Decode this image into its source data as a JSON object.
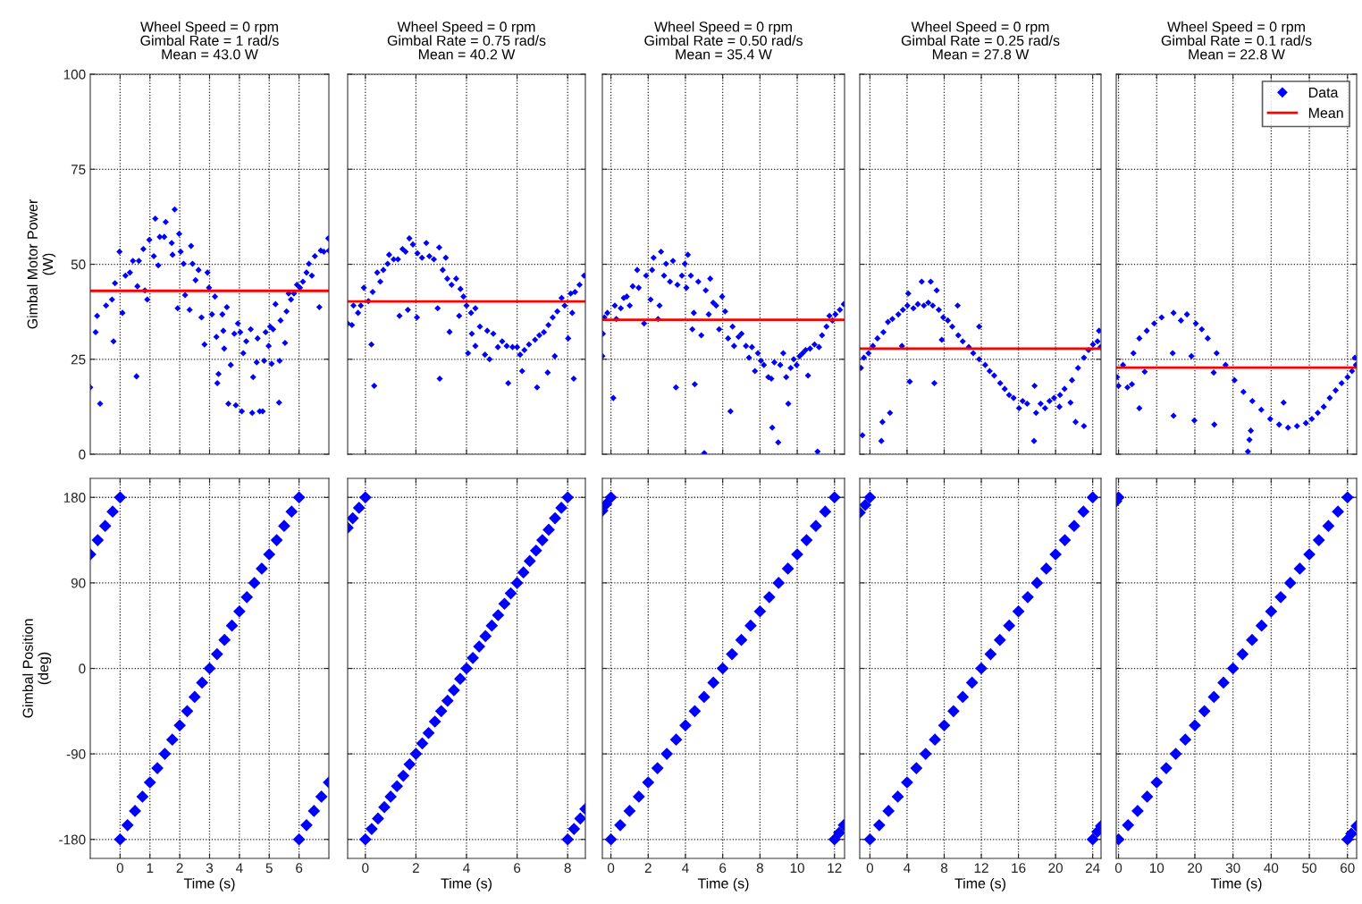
{
  "chart_data": [
    {
      "type": "scatter",
      "title": "Wheel Speed = 0 rpm\nGimbal Rate = 1 rad/s\nMean = 43.0 W",
      "ylabel": "Gimbal Motor Power\n(W)",
      "xlim": [
        -1,
        7
      ],
      "xticks": [
        0,
        1,
        2,
        3,
        4,
        5,
        6
      ],
      "ylim": [
        0,
        100
      ],
      "yticks": [
        0,
        25,
        50,
        75,
        100
      ],
      "grid": true,
      "tick_labels": "y",
      "series": [
        {
          "marker": "diamond",
          "color": "#0000ff",
          "x": [
            -1.0,
            -0.82,
            -0.77,
            -0.67,
            -0.47,
            -0.27,
            -0.22,
            -0.17,
            -0.02,
            0.08,
            0.18,
            0.33,
            0.43,
            0.55,
            0.58,
            0.63,
            0.78,
            0.83,
            0.91,
            0.98,
            1.13,
            1.18,
            1.28,
            1.33,
            1.48,
            1.53,
            1.73,
            1.76,
            1.83,
            1.93,
            1.98,
            2.03,
            2.13,
            2.18,
            2.33,
            2.38,
            2.43,
            2.53,
            2.63,
            2.73,
            2.83,
            2.93,
            2.98,
            3.08,
            3.18,
            3.23,
            3.26,
            3.3,
            3.43,
            3.46,
            3.49,
            3.58,
            3.63,
            3.71,
            3.83,
            3.88,
            3.95,
            4.03,
            4.08,
            4.13,
            4.23,
            4.38,
            4.43,
            4.46,
            4.58,
            4.61,
            4.68,
            4.78,
            4.83,
            4.88,
            4.98,
            5.03,
            5.08,
            5.13,
            5.21,
            5.33,
            5.35,
            5.38,
            5.53,
            5.58,
            5.65,
            5.73,
            5.83,
            5.93,
            6.03,
            6.13,
            6.25,
            6.33,
            6.43,
            6.53,
            6.68,
            6.73,
            6.83,
            6.98,
            7.0
          ],
          "values": [
            17.6,
            32.1,
            36.4,
            13.3,
            39.1,
            40.7,
            29.7,
            45.0,
            53.3,
            37.2,
            47.0,
            47.8,
            50.9,
            20.5,
            44.2,
            50.9,
            54.0,
            43.1,
            40.7,
            56.4,
            52.1,
            62.0,
            49.7,
            57.2,
            57.2,
            61.1,
            55.6,
            52.5,
            64.4,
            38.4,
            58.0,
            53.3,
            50.1,
            41.9,
            38.0,
            54.8,
            50.1,
            45.8,
            48.5,
            36.0,
            28.9,
            47.8,
            43.8,
            36.8,
            41.5,
            30.9,
            18.7,
            21.1,
            36.8,
            32.5,
            27.8,
            38.7,
            13.3,
            23.5,
            31.7,
            12.9,
            34.4,
            32.1,
            11.3,
            26.6,
            29.7,
            32.9,
            10.9,
            20.3,
            24.2,
            30.5,
            11.3,
            11.3,
            24.6,
            32.1,
            28.5,
            33.6,
            23.8,
            32.9,
            39.5,
            13.6,
            24.6,
            35.2,
            29.3,
            37.6,
            42.3,
            40.7,
            42.3,
            44.6,
            43.8,
            45.4,
            47.8,
            50.1,
            47.0,
            52.1,
            38.7,
            53.6,
            53.3,
            56.8,
            53.6
          ]
        },
        {
          "type": "line",
          "color": "#ff0000",
          "x": [
            -1,
            7
          ],
          "values": [
            43.0,
            43.0
          ]
        }
      ]
    },
    {
      "type": "scatter",
      "title": "Wheel Speed = 0 rpm\nGimbal Rate = 0.75 rad/s\nMean = 40.2 W",
      "xlim": [
        -0.7,
        8.7
      ],
      "xticks": [
        0,
        2,
        4,
        6,
        8
      ],
      "ylim": [
        0,
        100
      ],
      "yticks": [
        0,
        25,
        50,
        75,
        100
      ],
      "grid": true,
      "tick_labels": false,
      "series": [
        {
          "marker": "diamond",
          "color": "#0000ff",
          "x": [
            -0.7,
            -0.53,
            -0.47,
            -0.29,
            -0.18,
            -0.06,
            0.12,
            0.24,
            0.29,
            0.35,
            0.47,
            0.59,
            0.71,
            0.88,
            0.94,
            1.12,
            1.29,
            1.35,
            1.47,
            1.59,
            1.68,
            1.74,
            1.88,
            2.04,
            2.06,
            2.24,
            2.41,
            2.53,
            2.71,
            2.86,
            2.92,
            2.94,
            3.06,
            3.18,
            3.24,
            3.33,
            3.41,
            3.59,
            3.71,
            3.76,
            3.88,
            4.0,
            4.06,
            4.18,
            4.21,
            4.35,
            4.35,
            4.53,
            4.73,
            4.82,
            4.91,
            5.06,
            5.24,
            5.41,
            5.59,
            5.65,
            5.82,
            6.0,
            6.12,
            6.2,
            6.29,
            6.47,
            6.71,
            6.79,
            6.88,
            7.06,
            7.21,
            7.24,
            7.41,
            7.49,
            7.59,
            7.76,
            7.88,
            8.02,
            8.12,
            8.18,
            8.24,
            8.29,
            8.47,
            8.65
          ],
          "values": [
            34.4,
            34.0,
            39.1,
            37.2,
            39.1,
            43.8,
            40.3,
            28.9,
            42.7,
            18.0,
            47.8,
            45.4,
            48.5,
            50.1,
            52.5,
            51.3,
            51.3,
            36.4,
            54.0,
            53.3,
            38.0,
            56.8,
            55.2,
            36.0,
            52.9,
            51.7,
            55.6,
            52.1,
            51.3,
            38.4,
            54.4,
            19.9,
            48.5,
            51.7,
            46.2,
            32.2,
            44.6,
            46.2,
            36.4,
            43.5,
            41.5,
            39.1,
            26.6,
            37.2,
            31.7,
            38.4,
            28.5,
            33.6,
            26.2,
            32.5,
            25.0,
            31.7,
            28.2,
            29.7,
            28.5,
            18.7,
            28.2,
            28.2,
            26.2,
            21.9,
            27.4,
            28.9,
            30.1,
            17.6,
            31.3,
            32.1,
            21.5,
            34.0,
            36.0,
            25.8,
            37.6,
            41.1,
            39.1,
            30.5,
            42.3,
            37.2,
            19.9,
            42.7,
            44.6,
            47.0
          ]
        },
        {
          "type": "line",
          "color": "#ff0000",
          "x": [
            -0.7,
            8.7
          ],
          "values": [
            40.2,
            40.2
          ]
        }
      ]
    },
    {
      "type": "scatter",
      "title": "Wheel Speed = 0 rpm\nGimbal Rate = 0.50 rad/s\nMean = 35.4 W",
      "xlim": [
        -0.46,
        12.54
      ],
      "xticks": [
        0,
        2,
        4,
        6,
        8,
        10,
        12
      ],
      "ylim": [
        0,
        100
      ],
      "yticks": [
        0,
        25,
        50,
        75,
        100
      ],
      "grid": true,
      "tick_labels": false,
      "series": [
        {
          "marker": "diamond",
          "color": "#0000ff",
          "x": [
            -0.46,
            -0.43,
            -0.35,
            -0.19,
            0.13,
            0.21,
            0.29,
            0.53,
            0.69,
            0.85,
            1.01,
            1.17,
            1.41,
            1.49,
            1.78,
            1.89,
            2.13,
            2.21,
            2.29,
            2.53,
            2.61,
            2.69,
            2.85,
            2.96,
            3.17,
            3.33,
            3.49,
            3.57,
            3.81,
            3.97,
            4.05,
            4.13,
            4.29,
            4.37,
            4.45,
            4.5,
            4.69,
            4.85,
            5.01,
            5.09,
            5.25,
            5.33,
            5.49,
            5.65,
            5.81,
            5.97,
            6.13,
            6.29,
            6.42,
            6.53,
            6.61,
            6.85,
            7.01,
            7.25,
            7.41,
            7.57,
            7.73,
            7.89,
            8.05,
            8.21,
            8.45,
            8.61,
            8.66,
            8.77,
            8.98,
            9.09,
            9.25,
            9.41,
            9.52,
            9.65,
            9.81,
            9.97,
            10.13,
            10.29,
            10.45,
            10.58,
            10.69,
            10.93,
            11.09,
            11.17,
            11.33,
            11.57,
            11.73,
            11.89,
            12.05,
            12.29,
            12.5
          ],
          "values": [
            25.8,
            31.7,
            36.0,
            37.2,
            14.8,
            39.1,
            35.6,
            38.4,
            41.1,
            41.5,
            39.1,
            44.2,
            48.5,
            43.8,
            34.4,
            47.0,
            40.7,
            48.5,
            51.7,
            35.6,
            39.1,
            53.3,
            47.0,
            50.1,
            45.4,
            50.9,
            17.6,
            44.6,
            47.0,
            50.1,
            43.8,
            52.5,
            47.0,
            32.9,
            37.2,
            18.4,
            45.4,
            31.3,
            0.3,
            43.1,
            36.8,
            46.2,
            39.9,
            39.1,
            32.9,
            41.5,
            37.6,
            30.5,
            11.3,
            33.6,
            28.5,
            30.9,
            31.7,
            28.5,
            25.4,
            28.2,
            21.9,
            26.6,
            24.6,
            23.5,
            20.3,
            19.9,
            7.0,
            24.2,
            3.1,
            23.5,
            26.6,
            20.3,
            13.3,
            22.7,
            25.0,
            23.5,
            25.8,
            26.6,
            27.4,
            20.7,
            27.8,
            28.9,
            0.7,
            28.2,
            31.3,
            33.6,
            36.4,
            35.2,
            36.8,
            38.0,
            39.5
          ]
        },
        {
          "type": "line",
          "color": "#ff0000",
          "x": [
            -0.46,
            12.54
          ],
          "values": [
            35.4,
            35.4
          ]
        }
      ]
    },
    {
      "type": "scatter",
      "title": "Wheel Speed = 0 rpm\nGimbal Rate = 0.25 rad/s\nMean = 27.8 W",
      "xlim": [
        -1.1,
        24.9
      ],
      "xticks": [
        0,
        4,
        8,
        12,
        16,
        20,
        24
      ],
      "ylim": [
        0,
        100
      ],
      "yticks": [
        0,
        25,
        50,
        75,
        100
      ],
      "grid": true,
      "tick_labels": false,
      "series": [
        {
          "marker": "diamond",
          "color": "#0000ff",
          "x": [
            -0.97,
            -0.81,
            -0.65,
            -0.16,
            0.32,
            0.81,
            1.23,
            1.35,
            1.45,
            1.94,
            2.16,
            2.42,
            3.06,
            3.45,
            3.55,
            4.03,
            4.13,
            4.29,
            4.68,
            5.16,
            5.58,
            5.81,
            6.29,
            6.55,
            6.77,
            6.94,
            7.19,
            7.42,
            7.74,
            7.9,
            8.39,
            8.87,
            9.45,
            9.52,
            10.0,
            10.65,
            11.13,
            11.77,
            11.77,
            12.42,
            12.9,
            13.39,
            14.03,
            14.52,
            15.0,
            15.48,
            16.06,
            16.45,
            16.94,
            17.68,
            17.74,
            17.9,
            18.39,
            18.87,
            19.35,
            19.84,
            20.42,
            20.48,
            20.97,
            21.61,
            21.77,
            22.16,
            22.42,
            23.06,
            23.06,
            23.55,
            24.03,
            24.52,
            24.68,
            24.84
          ],
          "values": [
            22.7,
            5.0,
            25.4,
            26.6,
            28.5,
            30.5,
            3.5,
            8.5,
            32.1,
            34.8,
            10.9,
            35.6,
            36.8,
            28.5,
            38.0,
            39.1,
            42.3,
            19.1,
            38.4,
            39.5,
            45.4,
            39.1,
            39.9,
            45.4,
            39.1,
            18.7,
            43.1,
            38.0,
            30.1,
            36.0,
            35.2,
            33.6,
            39.1,
            31.3,
            29.7,
            28.2,
            26.6,
            33.6,
            25.0,
            23.5,
            21.9,
            20.7,
            18.7,
            17.2,
            15.6,
            14.8,
            12.1,
            14.0,
            13.3,
            3.5,
            18.0,
            10.9,
            13.3,
            12.1,
            14.0,
            14.8,
            12.5,
            15.6,
            17.2,
            13.6,
            19.5,
            8.5,
            22.7,
            7.4,
            25.4,
            27.4,
            28.9,
            29.7,
            32.5,
            28.2
          ]
        },
        {
          "type": "line",
          "color": "#ff0000",
          "x": [
            -1.1,
            24.9
          ],
          "values": [
            27.8,
            27.8
          ]
        }
      ]
    },
    {
      "type": "scatter",
      "title": "Wheel Speed = 0 rpm\nGimbal Rate = 0.1 rad/s\nMean = 22.8 W",
      "xlim": [
        -0.6,
        62.4
      ],
      "xticks": [
        0,
        10,
        20,
        30,
        40,
        50,
        60
      ],
      "ylim": [
        0,
        100
      ],
      "yticks": [
        0,
        25,
        50,
        75,
        100
      ],
      "grid": true,
      "tick_labels": false,
      "legend": "top right",
      "series": [
        {
          "name": "Data",
          "marker": "diamond",
          "color": "#0000ff",
          "x": [
            -0.39,
            0,
            1.17,
            2.34,
            3.51,
            3.9,
            5.46,
            5.46,
            6.86,
            7.4,
            9.35,
            11.3,
            14.19,
            14.42,
            14.42,
            16.37,
            17.93,
            19.1,
            19.88,
            20.26,
            21.82,
            23.38,
            24.94,
            25.1,
            25.72,
            28.06,
            30.4,
            32.74,
            33.91,
            34.3,
            34.68,
            35.07,
            37.41,
            39.75,
            42.09,
            43.26,
            44.43,
            46.77,
            49.1,
            50.66,
            52.22,
            53.78,
            55.34,
            56.9,
            58.46,
            60.02,
            61.18,
            61.96,
            62.2
          ],
          "values": [
            20.3,
            18.0,
            23.5,
            17.6,
            18.4,
            26.6,
            12.1,
            30.5,
            21.7,
            32.5,
            34.4,
            36.0,
            26.6,
            10.1,
            37.2,
            35.2,
            36.8,
            25.8,
            8.9,
            34.4,
            32.9,
            30.5,
            21.5,
            7.8,
            26.6,
            23.5,
            19.5,
            16.4,
            0.7,
            3.8,
            6.2,
            14.0,
            11.7,
            9.3,
            7.8,
            13.6,
            7.0,
            7.4,
            8.2,
            9.3,
            10.9,
            12.5,
            14.8,
            16.8,
            18.7,
            20.3,
            21.9,
            25.4,
            23.5
          ]
        },
        {
          "name": "Mean",
          "type": "line",
          "color": "#ff0000",
          "x": [
            -0.6,
            62.4
          ],
          "values": [
            22.8,
            22.8
          ]
        }
      ]
    },
    {
      "type": "scatter",
      "xlabel": "Time (s)",
      "ylabel": "Gimbal Position\n(deg)",
      "xlim": [
        -1,
        7
      ],
      "xticks": [
        0,
        1,
        2,
        3,
        4,
        5,
        6
      ],
      "ylim": [
        -200,
        200
      ],
      "yticks": [
        -180,
        -90,
        0,
        90,
        180
      ],
      "grid": true,
      "series": [
        {
          "marker": "diamond",
          "color": "#0000ff",
          "x": [
            -1,
            -0.75,
            -0.5,
            -0.25,
            0,
            0,
            0.25,
            0.5,
            0.75,
            1,
            1.25,
            1.5,
            1.75,
            2,
            2.25,
            2.5,
            2.75,
            3,
            3.25,
            3.5,
            3.75,
            4,
            4.25,
            4.5,
            4.75,
            5,
            5.25,
            5.5,
            5.75,
            6,
            6,
            6.25,
            6.5,
            6.75,
            7
          ],
          "values": [
            120,
            135,
            150,
            165,
            180,
            -180,
            -165,
            -150,
            -135,
            -120,
            -105,
            -90,
            -75,
            -60,
            -45,
            -30,
            -15,
            0,
            15,
            30,
            45,
            60,
            75,
            90,
            105,
            120,
            135,
            150,
            165,
            180,
            -180,
            -165,
            -150,
            -135,
            -120
          ]
        }
      ]
    },
    {
      "type": "scatter",
      "xlabel": "Time (s)",
      "xlim": [
        -0.7,
        8.7
      ],
      "xticks": [
        0,
        2,
        4,
        6,
        8
      ],
      "ylim": [
        -200,
        200
      ],
      "yticks": [
        -180,
        -90,
        0,
        90,
        180
      ],
      "grid": true,
      "tick_labels": "x",
      "series": [
        {
          "marker": "diamond",
          "color": "#0000ff",
          "x": [
            -0.7,
            -0.5,
            -0.25,
            0,
            0,
            0.25,
            0.5,
            0.75,
            1,
            1.25,
            1.5,
            1.75,
            2,
            2.25,
            2.5,
            2.75,
            3,
            3.25,
            3.5,
            3.75,
            4,
            4.25,
            4.5,
            4.75,
            5,
            5.25,
            5.5,
            5.75,
            6,
            6.25,
            6.5,
            6.75,
            7,
            7.25,
            7.5,
            7.75,
            8,
            8,
            8.25,
            8.5,
            8.7
          ],
          "values": [
            148,
            158,
            169,
            180,
            -180,
            -169,
            -158,
            -146,
            -135,
            -124,
            -113,
            -101,
            -90,
            -79,
            -68,
            -56,
            -45,
            -34,
            -23,
            -11,
            0,
            11,
            23,
            34,
            45,
            56,
            68,
            79,
            90,
            101,
            113,
            124,
            135,
            146,
            158,
            169,
            180,
            -180,
            -169,
            -158,
            -148
          ]
        }
      ]
    },
    {
      "type": "scatter",
      "xlabel": "Time (s)",
      "xlim": [
        -0.46,
        12.54
      ],
      "xticks": [
        0,
        2,
        4,
        6,
        8,
        10,
        12
      ],
      "ylim": [
        -200,
        200
      ],
      "yticks": [
        -180,
        -90,
        0,
        90,
        180
      ],
      "grid": true,
      "tick_labels": "x",
      "series": [
        {
          "marker": "diamond",
          "color": "#0000ff",
          "x": [
            -0.46,
            -0.25,
            0,
            0,
            0.5,
            1,
            1.5,
            2,
            2.5,
            3,
            3.5,
            4,
            4.5,
            5,
            5.5,
            6,
            6.5,
            7,
            7.5,
            8,
            8.5,
            9,
            9.5,
            10,
            10.5,
            11,
            11.5,
            12,
            12,
            12.25,
            12.5
          ],
          "values": [
            166,
            173,
            180,
            -180,
            -165,
            -150,
            -135,
            -120,
            -105,
            -90,
            -75,
            -60,
            -45,
            -30,
            -15,
            0,
            15,
            30,
            45,
            60,
            75,
            90,
            105,
            120,
            135,
            150,
            165,
            180,
            -180,
            -173,
            -165
          ]
        }
      ]
    },
    {
      "type": "scatter",
      "xlabel": "Time (s)",
      "xlim": [
        -1.1,
        24.9
      ],
      "xticks": [
        0,
        4,
        8,
        12,
        16,
        20,
        24
      ],
      "ylim": [
        -200,
        200
      ],
      "yticks": [
        -180,
        -90,
        0,
        90,
        180
      ],
      "grid": true,
      "tick_labels": "x",
      "series": [
        {
          "marker": "diamond",
          "color": "#0000ff",
          "x": [
            -1.1,
            -0.5,
            0,
            0,
            1,
            2,
            3,
            4,
            5,
            6,
            7,
            8,
            9,
            10,
            11,
            12,
            13,
            14,
            15,
            16,
            17,
            18,
            19,
            20,
            21,
            22,
            23,
            24,
            24,
            24.5,
            24.9
          ],
          "values": [
            164,
            172,
            180,
            -180,
            -165,
            -150,
            -135,
            -120,
            -105,
            -90,
            -75,
            -60,
            -45,
            -30,
            -15,
            0,
            15,
            30,
            45,
            60,
            75,
            90,
            105,
            120,
            135,
            150,
            165,
            180,
            -180,
            -172,
            -166
          ]
        }
      ]
    },
    {
      "type": "scatter",
      "xlabel": "Time (s)",
      "xlim": [
        -0.6,
        62.4
      ],
      "xticks": [
        0,
        10,
        20,
        30,
        40,
        50,
        60
      ],
      "ylim": [
        -200,
        200
      ],
      "yticks": [
        -180,
        -90,
        0,
        90,
        180
      ],
      "grid": true,
      "tick_labels": "x",
      "series": [
        {
          "marker": "diamond",
          "color": "#0000ff",
          "x": [
            -0.6,
            0,
            0,
            2.5,
            5,
            7.5,
            10,
            12.5,
            15,
            17.5,
            20,
            22.5,
            25,
            27.5,
            30,
            32.5,
            35,
            37.5,
            40,
            42.5,
            45,
            47.5,
            50,
            52.5,
            55,
            57.5,
            60,
            60,
            61,
            62.4
          ],
          "values": [
            176,
            180,
            -180,
            -165,
            -150,
            -135,
            -120,
            -105,
            -90,
            -75,
            -60,
            -45,
            -30,
            -15,
            0,
            15,
            30,
            45,
            60,
            75,
            90,
            105,
            120,
            135,
            150,
            165,
            180,
            -180,
            -174,
            -166
          ]
        }
      ]
    }
  ]
}
